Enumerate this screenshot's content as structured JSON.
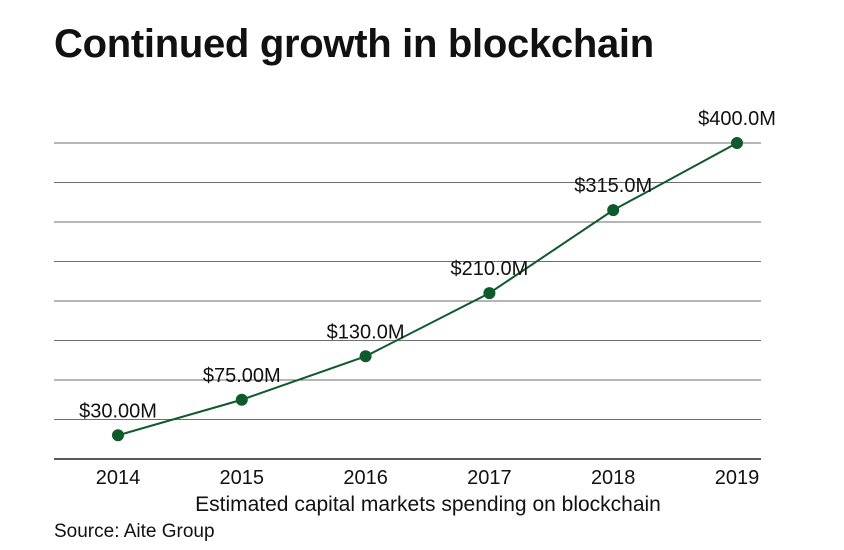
{
  "title": "Continued growth in blockchain",
  "source": "Source: Aite Group",
  "colors": {
    "series": "#0e5a2c",
    "grid": "#6e6e6e",
    "text": "#111111"
  },
  "chart_data": {
    "type": "line",
    "title": "Continued growth in blockchain",
    "xlabel": "Estimated capital markets spending on blockchain",
    "ylabel": "",
    "categories": [
      "2014",
      "2015",
      "2016",
      "2017",
      "2018",
      "2019"
    ],
    "series": [
      {
        "name": "Estimated capital markets spending on blockchain",
        "values": [
          30,
          75,
          130,
          210,
          315,
          400
        ],
        "labels": [
          "$30.00M",
          "$75.00M",
          "$130.0M",
          "$210.0M",
          "$315.0M",
          "$400.0M"
        ]
      }
    ],
    "ylim": [
      0,
      400
    ],
    "grid": true,
    "legend": "none"
  }
}
